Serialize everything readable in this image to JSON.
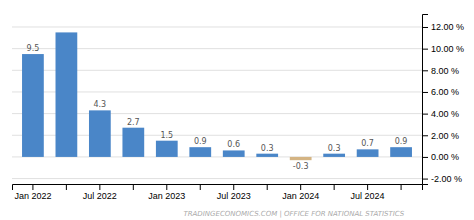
{
  "chart_data": {
    "type": "bar",
    "categories": [
      "Jan 2022",
      null,
      "Jul 2022",
      null,
      "Jan 2023",
      null,
      "Jul 2023",
      null,
      "Jan 2024",
      null,
      "Jul 2024",
      null
    ],
    "values": [
      9.5,
      11.5,
      4.3,
      2.7,
      1.5,
      0.9,
      0.6,
      0.3,
      -0.3,
      0.3,
      0.7,
      0.9
    ],
    "value_labels": [
      "9.5",
      null,
      "4.3",
      "2.7",
      "1.5",
      "0.9",
      "0.6",
      "0.3",
      "-0.3",
      "0.3",
      "0.7",
      "0.9"
    ],
    "colors": [
      "#4a86c8",
      "#4a86c8",
      "#4a86c8",
      "#4a86c8",
      "#4a86c8",
      "#4a86c8",
      "#4a86c8",
      "#4a86c8",
      "#d4b483",
      "#4a86c8",
      "#4a86c8",
      "#4a86c8"
    ],
    "ylim": [
      -2.5,
      13.2
    ],
    "yticks": [
      {
        "value": -2.0,
        "label": "-2.00 %"
      },
      {
        "value": 0.0,
        "label": "0.00 %"
      },
      {
        "value": 2.0,
        "label": "2.00 %"
      },
      {
        "value": 4.0,
        "label": "4.00 %"
      },
      {
        "value": 6.0,
        "label": "6.00 %"
      },
      {
        "value": 8.0,
        "label": "8.00 %"
      },
      {
        "value": 10.0,
        "label": "10.00 %"
      },
      {
        "value": 12.0,
        "label": "12.00 %"
      }
    ],
    "grid": true,
    "annotation": "TRADINGECONOMICS.COM | OFFICE FOR NATIONAL STATISTICS"
  }
}
